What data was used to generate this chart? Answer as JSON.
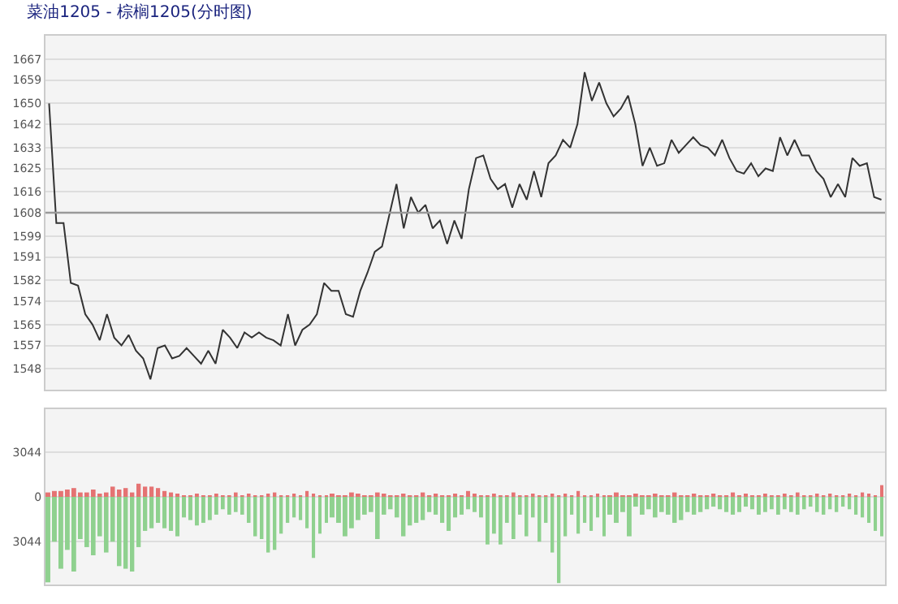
{
  "chart_data": [
    {
      "type": "line",
      "title": "菜油1205 - 棕榈1205(分时图)",
      "tick_labels": "y",
      "grid": "y",
      "marker": "none",
      "line_style": "solid",
      "categories": [
        null,
        null,
        null,
        null,
        null,
        null,
        null,
        null,
        null,
        null,
        null,
        null,
        null,
        null,
        null,
        null,
        null,
        null,
        null,
        null,
        null,
        null,
        null,
        null,
        null,
        null,
        null,
        null,
        null,
        null,
        null,
        null,
        null,
        null,
        null,
        null,
        null,
        null,
        null,
        null,
        null,
        null,
        null,
        null,
        null,
        null,
        null,
        null,
        null,
        null,
        null,
        null,
        null,
        null,
        null,
        null,
        null,
        null,
        null,
        null,
        null,
        null,
        null,
        null,
        null,
        null,
        null,
        null,
        null,
        null,
        null,
        null,
        null,
        null,
        null,
        null,
        null,
        null,
        null,
        null,
        null,
        null,
        null,
        null,
        null,
        null,
        null,
        null,
        null,
        null,
        null,
        null,
        null,
        null,
        null,
        null,
        null,
        null,
        null,
        null,
        null,
        null,
        null,
        null,
        null,
        null,
        null,
        null,
        null,
        null,
        null,
        null,
        null,
        null,
        null,
        null
      ],
      "series": [
        {
          "color": "#333333",
          "values": [
            1650,
            1604,
            1604,
            1581,
            1580,
            1569,
            1565,
            1559,
            1569,
            1560,
            1557,
            1561,
            1555,
            1552,
            1544,
            1556,
            1557,
            1552,
            1553,
            1556,
            1553,
            1550,
            1555,
            1550,
            1563,
            1560,
            1556,
            1562,
            1560,
            1562,
            1560,
            1559,
            1557,
            1569,
            1557,
            1563,
            1565,
            1569,
            1581,
            1578,
            1578,
            1569,
            1568,
            1578,
            1585,
            1593,
            1595,
            1607,
            1619,
            1602,
            1614,
            1608,
            1611,
            1602,
            1605,
            1596,
            1605,
            1598,
            1617,
            1629,
            1630,
            1621,
            1617,
            1619,
            1610,
            1619,
            1613,
            1624,
            1614,
            1627,
            1630,
            1636,
            1633,
            1642,
            1662,
            1651,
            1658,
            1650,
            1645,
            1648,
            1653,
            1642,
            1626,
            1633,
            1626,
            1627,
            1636,
            1631,
            1634,
            1637,
            1634,
            1633,
            1630,
            1636,
            1629,
            1624,
            1623,
            1627,
            1622,
            1625,
            1624,
            1637,
            1630,
            1636,
            1630,
            1630,
            1624,
            1621,
            1614,
            1619,
            1614,
            1629,
            1626,
            1627,
            1614,
            1613
          ]
        }
      ],
      "ylim": [
        1540,
        1676
      ],
      "yticks": [
        1548,
        1557,
        1565,
        1574,
        1582,
        1591,
        1599,
        1608,
        1616,
        1625,
        1633,
        1642,
        1650,
        1659,
        1667
      ],
      "ref_lines": [
        {
          "axis": "y",
          "value": 1608,
          "color": "#999999"
        }
      ]
    },
    {
      "type": "bar",
      "stacked": true,
      "tick_labels": "y",
      "grid": "y",
      "categories": [
        null,
        null,
        null,
        null,
        null,
        null,
        null,
        null,
        null,
        null,
        null,
        null,
        null,
        null,
        null,
        null,
        null,
        null,
        null,
        null,
        null,
        null,
        null,
        null,
        null,
        null,
        null,
        null,
        null,
        null,
        null,
        null,
        null,
        null,
        null,
        null,
        null,
        null,
        null,
        null,
        null,
        null,
        null,
        null,
        null,
        null,
        null,
        null,
        null,
        null,
        null,
        null,
        null,
        null,
        null,
        null,
        null,
        null,
        null,
        null,
        null,
        null,
        null,
        null,
        null,
        null,
        null,
        null,
        null,
        null,
        null,
        null,
        null,
        null,
        null,
        null,
        null,
        null,
        null,
        null,
        null,
        null,
        null,
        null,
        null,
        null,
        null,
        null,
        null,
        null,
        null,
        null,
        null,
        null,
        null,
        null,
        null,
        null,
        null,
        null,
        null,
        null,
        null,
        null,
        null,
        null,
        null,
        null,
        null,
        null,
        null,
        null,
        null,
        null,
        null,
        null,
        null,
        null,
        null,
        null,
        null,
        null,
        null,
        null,
        null,
        null,
        null,
        null,
        null,
        null
      ],
      "series": [
        {
          "color": "#e57373",
          "values": [
            300,
            400,
            400,
            500,
            600,
            300,
            300,
            500,
            200,
            300,
            700,
            500,
            600,
            300,
            900,
            700,
            700,
            600,
            400,
            300,
            200,
            100,
            100,
            200,
            100,
            100,
            200,
            100,
            100,
            300,
            100,
            200,
            100,
            100,
            200,
            300,
            100,
            100,
            200,
            100,
            400,
            200,
            100,
            100,
            200,
            100,
            100,
            300,
            200,
            100,
            100,
            300,
            200,
            100,
            100,
            200,
            100,
            100,
            300,
            100,
            200,
            100,
            100,
            200,
            100,
            400,
            200,
            100,
            100,
            200,
            100,
            100,
            300,
            100,
            100,
            200,
            100,
            100,
            200,
            100,
            200,
            100,
            400,
            100,
            100,
            200,
            100,
            100,
            300,
            100,
            100,
            200,
            100,
            100,
            200,
            100,
            100,
            300,
            100,
            100,
            200,
            100,
            100,
            200,
            100,
            100,
            300,
            100,
            200,
            100,
            100,
            200,
            100,
            100,
            200,
            100,
            300,
            100,
            100,
            200,
            100,
            200,
            100,
            100,
            200,
            100,
            300,
            200,
            100,
            800
          ]
        },
        {
          "color": "#8fd18f",
          "values": [
            -5850,
            -3070,
            -4920,
            -3630,
            -5110,
            -2890,
            -3440,
            -4000,
            -2700,
            -3810,
            -3070,
            -4740,
            -4920,
            -5110,
            -3440,
            -2330,
            -2150,
            -1780,
            -2150,
            -2330,
            -2700,
            -1410,
            -1590,
            -1960,
            -1780,
            -1590,
            -1220,
            -850,
            -1220,
            -1040,
            -1220,
            -1780,
            -2700,
            -2890,
            -3810,
            -3630,
            -2520,
            -1780,
            -1410,
            -1590,
            -2150,
            -4180,
            -2520,
            -1780,
            -1410,
            -1780,
            -2700,
            -2150,
            -1590,
            -1220,
            -1040,
            -2890,
            -1220,
            -850,
            -1410,
            -2700,
            -1960,
            -1780,
            -1590,
            -1040,
            -1220,
            -1780,
            -2330,
            -1410,
            -1220,
            -850,
            -1040,
            -1410,
            -3260,
            -2520,
            -3260,
            -1780,
            -2890,
            -1220,
            -2700,
            -1410,
            -3070,
            -1780,
            -3810,
            -5900,
            -2700,
            -1220,
            -2520,
            -1780,
            -2330,
            -1410,
            -2700,
            -1220,
            -1780,
            -1040,
            -2700,
            -670,
            -1220,
            -850,
            -1410,
            -1040,
            -1220,
            -1780,
            -1590,
            -1040,
            -1220,
            -1040,
            -850,
            -670,
            -850,
            -1040,
            -1220,
            -1040,
            -670,
            -850,
            -1220,
            -1040,
            -850,
            -1220,
            -850,
            -1040,
            -1220,
            -850,
            -670,
            -1040,
            -1220,
            -850,
            -1040,
            -670,
            -850,
            -1220,
            -1410,
            -1780,
            -2330,
            -2700
          ]
        }
      ],
      "ylim": [
        -6000,
        6000
      ],
      "yticks": [
        3044,
        0,
        {
          "value": -3044,
          "label": "3044"
        }
      ]
    }
  ]
}
